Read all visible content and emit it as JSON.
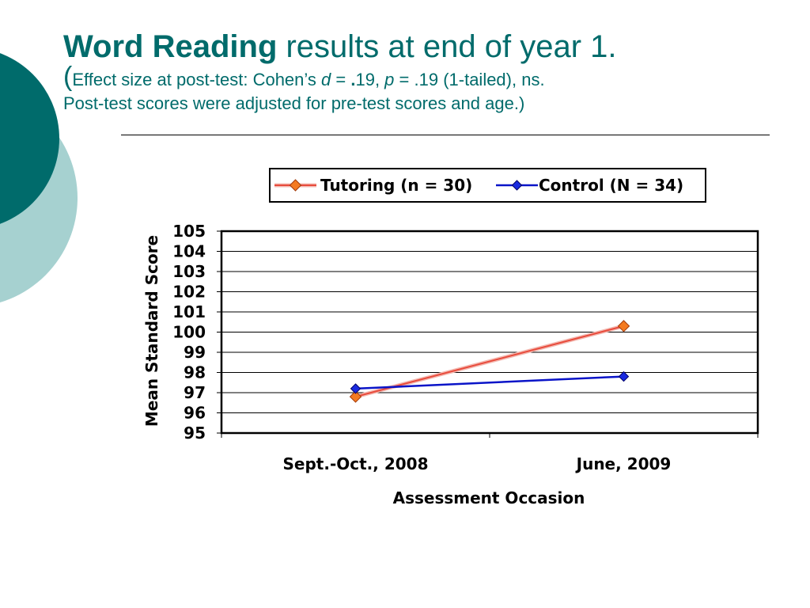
{
  "slide": {
    "title_bold": "Word Reading",
    "title_rest": " results at end of year 1.",
    "sub_open": "(",
    "sub_a": "Effect size at post-test: Cohen’s ",
    "sub_d": "d",
    "sub_eq": " = ",
    "sub_dot": ".",
    "sub_b": "19, ",
    "sub_p": "p",
    "sub_c": " = .19 (1-tailed), ns.",
    "sub_line2": "Post-test scores were adjusted for pre-test scores and age.)"
  },
  "colors": {
    "accent": "#006b6b",
    "deco_dark": "#006b6b",
    "deco_light": "#a6d1d0"
  },
  "chart_data": {
    "type": "line",
    "categories": [
      "Sept.-Oct., 2008",
      "June, 2009"
    ],
    "series": [
      {
        "name": "Tutoring (n = 30)",
        "values": [
          96.8,
          100.3
        ],
        "color": "#e84b3c",
        "marker": "diamond",
        "marker_color": "#f47a20"
      },
      {
        "name": "Control (N = 34)",
        "values": [
          97.2,
          97.8
        ],
        "color": "#0a14c8",
        "marker": "diamond",
        "marker_color": "#1a2be0"
      }
    ],
    "xlabel": "Assessment Occasion",
    "ylabel": "Mean Standard Score",
    "ylim": [
      95,
      105
    ],
    "yticks": [
      105,
      104,
      103,
      102,
      101,
      100,
      99,
      98,
      97,
      96,
      95
    ],
    "grid": true,
    "legend_position": "top"
  }
}
